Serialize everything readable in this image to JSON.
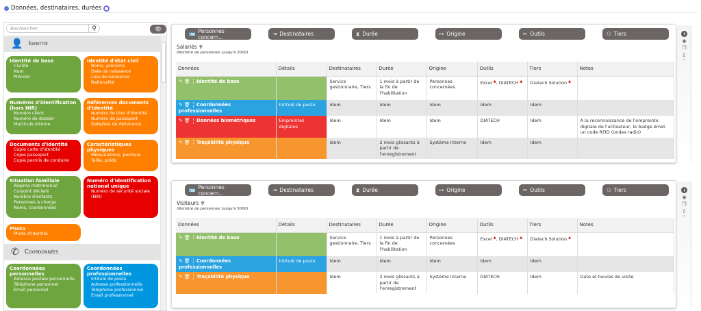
{
  "header": {
    "title": "Données, destinataires, durées"
  },
  "sidebar": {
    "search_placeholder": "Rechercher",
    "sections": [
      {
        "title": "Identité",
        "icon": "person-icon",
        "cards": [
          {
            "title": "Identité de base",
            "color": "g",
            "items": [
              "Civilité",
              "Nom",
              "Prénom"
            ]
          },
          {
            "title": "Identité d'état civil",
            "color": "o",
            "items": [
              "Noms, prénoms",
              "Date de naissance",
              "Lieu de naissance",
              "Nationalité"
            ]
          },
          {
            "title": "Numéros d'identification (hors NIR)",
            "color": "g",
            "items": [
              "Numéro client",
              "Numéro de dossier",
              "Matricule interne"
            ]
          },
          {
            "title": "Références documents d'identité",
            "color": "o",
            "items": [
              "Numéro de titre d'identité",
              "Numéro de passeport",
              "Date/lieu de délivrance"
            ]
          },
          {
            "title": "Documents d'identité",
            "color": "r",
            "items": [
              "Copie carte d'identité",
              "Copie passeport",
              "Copie permis de conduire"
            ]
          },
          {
            "title": "Caractéristiques physiques",
            "color": "o",
            "items": [
              "Mensurations, pointure",
              "Taille, poids"
            ]
          },
          {
            "title": "Situation familiale",
            "color": "g",
            "items": [
              "Régime matrimonial",
              "Conjoint déclaré",
              "Nombre d'enfants",
              "Personnes à charge",
              "Noms, coordonnées"
            ]
          },
          {
            "title": "Numéro d'identification national unique",
            "color": "r",
            "items": [
              "Numéro de sécurité sociale (NIR)"
            ]
          },
          {
            "title": "Photo",
            "color": "o",
            "items": [
              "Photo d'identité"
            ]
          }
        ]
      },
      {
        "title": "Coordonnées",
        "icon": "phone-icon",
        "cards": [
          {
            "title": "Coordonnées personnelles",
            "color": "g",
            "items": [
              "Adresse postale personnelle",
              "Téléphone personnel",
              "Email personnel"
            ]
          },
          {
            "title": "Coordonnées professionnelles",
            "color": "b",
            "items": [
              "Intitulé de poste",
              "Adresse professionnelle",
              "Téléphone professionnel",
              "Email professionnel"
            ]
          }
        ]
      }
    ]
  },
  "buttons": [
    {
      "label": "Personnes concern...",
      "icon": "id-card-icon"
    },
    {
      "label": "Destinataires",
      "icon": "arrow-to-icon"
    },
    {
      "label": "Durée",
      "icon": "hourglass-icon"
    },
    {
      "label": "Origine",
      "icon": "arrow-from-icon"
    },
    {
      "label": "Outils",
      "icon": "tools-icon"
    },
    {
      "label": "Tiers",
      "icon": "people-icon"
    }
  ],
  "columns": [
    "Données",
    "Détails",
    "Destinataires",
    "Durée",
    "Origine",
    "Outils",
    "Tiers",
    "Notes"
  ],
  "colors": {
    "g": "#93c06a",
    "b": "#2aa3e0",
    "r": "#ee3333",
    "o": "#f7952e"
  },
  "panels": [
    {
      "title": "Salariés",
      "subtitle": "(Nombre de personnes: Jusqu'à 2000)",
      "rows": [
        {
          "color": "g",
          "cells": [
            "Identité de base",
            "",
            "Service gestionnaire, Tiers",
            "1 mois à partir de la fin de l'habilitation",
            "Personnes concernées",
            "Excel ▲, DIATECH ▲",
            "Diatech Solution ▲",
            ""
          ]
        },
        {
          "color": "b",
          "cells": [
            "Coordonnées professionnelles",
            "Intitulé de poste",
            "Idem",
            "Idem",
            "Idem",
            "Idem",
            "Idem",
            ""
          ]
        },
        {
          "color": "r",
          "cells": [
            "Données biométriques",
            "Empreintes digitales",
            "Idem",
            "Idem",
            "Idem",
            "DIATECH",
            "Idem",
            "A la reconnaissance de l'empreinte digitale de l'utilisateur, le badge émet un code RFID (ondes radio)"
          ]
        },
        {
          "color": "o",
          "cells": [
            "Traçabilité physique",
            "",
            "Idem",
            "2 mois glissants à partir de l'enregistrement",
            "Système Interne",
            "Idem",
            "Idem",
            ""
          ]
        }
      ]
    },
    {
      "title": "Visiteurs",
      "subtitle": "(Nombre de personnes: Jusqu'à 5000)",
      "rows": [
        {
          "color": "g",
          "cells": [
            "Identité de base",
            "",
            "Service gestionnaire, Tiers",
            "1 mois à partir de la fin de l'habilitation",
            "Personnes concernées",
            "Excel ▲, DIATECH ▲",
            "Diatech Solution ▲",
            ""
          ]
        },
        {
          "color": "b",
          "cells": [
            "Coordonnées professionnelles",
            "Intitulé de poste",
            "Idem",
            "Idem",
            "Idem",
            "Idem",
            "Idem",
            ""
          ]
        },
        {
          "color": "o",
          "cells": [
            "Traçabilité physique",
            "",
            "Idem",
            "2 mois glissants à partir de l'enregistrement",
            "Système Interne",
            "DIATECH",
            "Idem",
            "Date et heures de visite"
          ]
        }
      ]
    }
  ]
}
